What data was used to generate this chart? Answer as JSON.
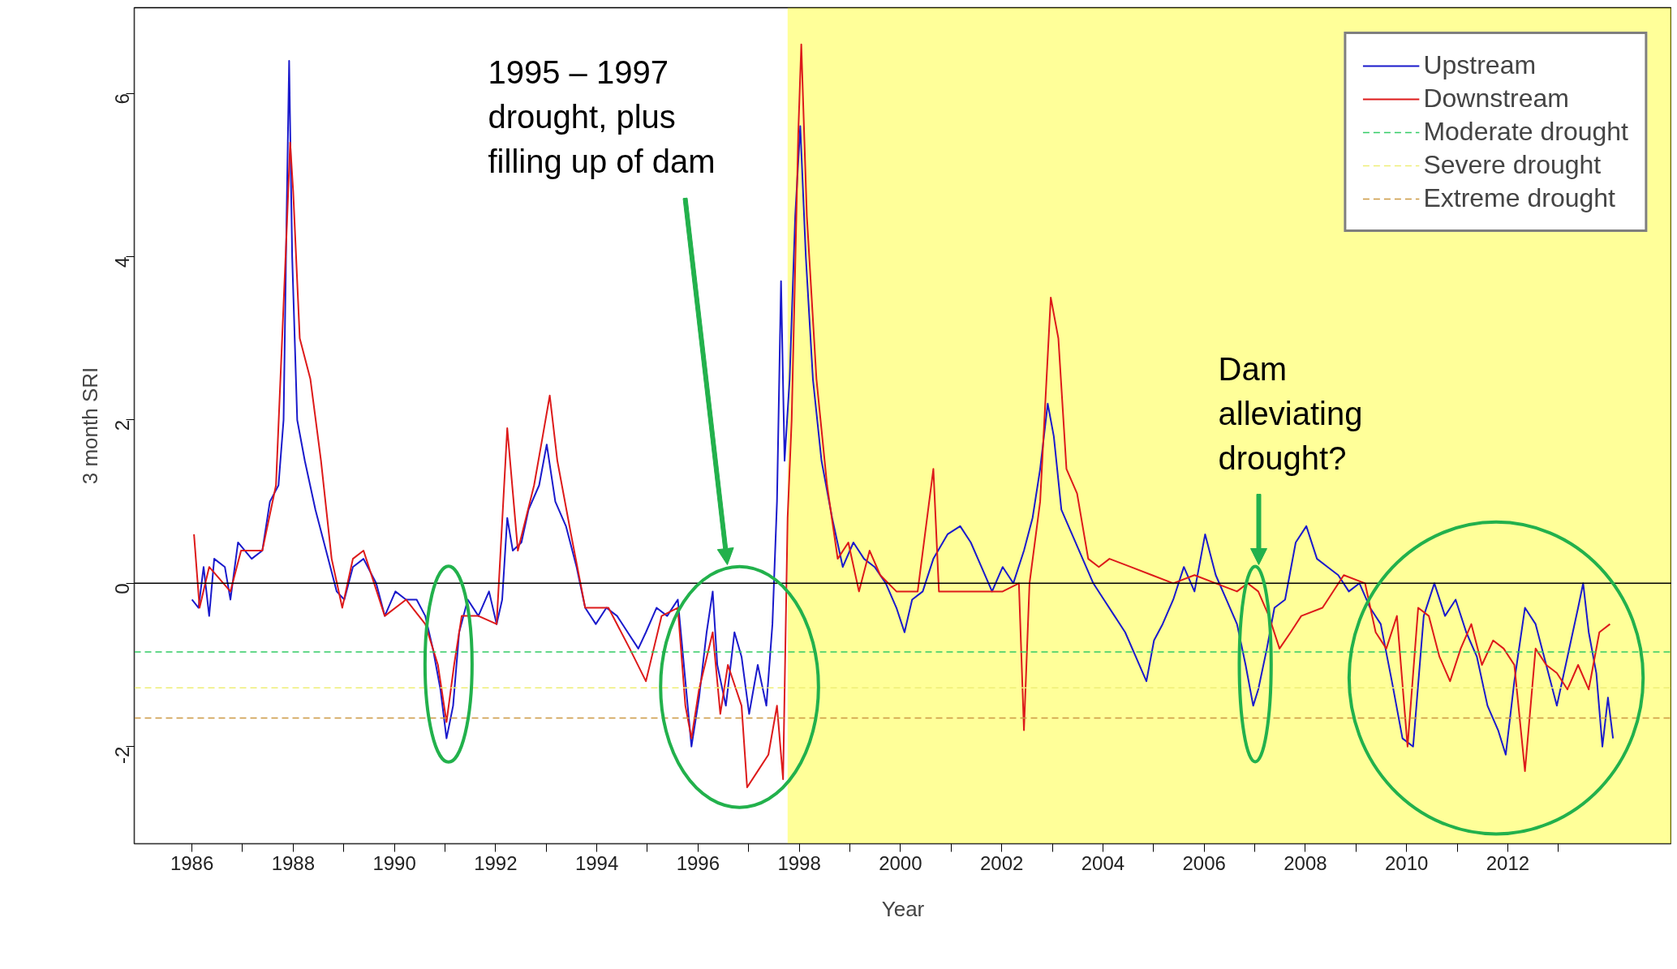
{
  "chart_data": {
    "type": "line",
    "xlabel": "Year",
    "ylabel": "3 month SRI",
    "xlim": [
      1984.86,
      2015.24
    ],
    "ylim": [
      -3.19,
      7.05
    ],
    "xticks": [
      1986,
      {
        "value": 1987,
        "label": null
      },
      1988,
      {
        "value": 1989,
        "label": null
      },
      1990,
      {
        "value": 1991,
        "label": null
      },
      1992,
      {
        "value": 1993,
        "label": null
      },
      1994,
      {
        "value": 1995,
        "label": null
      },
      1996,
      {
        "value": 1997,
        "label": null
      },
      1998,
      {
        "value": 1999,
        "label": null
      },
      2000,
      {
        "value": 2001,
        "label": null
      },
      2002,
      {
        "value": 2003,
        "label": null
      },
      2004,
      {
        "value": 2005,
        "label": null
      },
      2006,
      {
        "value": 2007,
        "label": null
      },
      2008,
      {
        "value": 2009,
        "label": null
      },
      2010,
      {
        "value": 2011,
        "label": null
      },
      2012,
      {
        "value": 2013,
        "label": null
      }
    ],
    "yticks": [
      -2,
      0,
      2,
      4,
      6
    ],
    "legend": "top right",
    "line_style": "solid",
    "series": [
      {
        "name": "Upstream",
        "color": "#1a1acc",
        "x": [
          1986.0,
          1986.13,
          1986.23,
          1986.34,
          1986.44,
          1986.65,
          1986.76,
          1986.91,
          1987.18,
          1987.39,
          1987.54,
          1987.71,
          1987.81,
          1987.87,
          1987.92,
          1987.98,
          1988.08,
          1988.23,
          1988.44,
          1988.65,
          1988.86,
          1989.01,
          1989.18,
          1989.39,
          1989.64,
          1989.81,
          1990.02,
          1990.23,
          1990.44,
          1990.61,
          1990.76,
          1990.91,
          1991.03,
          1991.16,
          1991.28,
          1991.45,
          1991.66,
          1991.87,
          1992.02,
          1992.13,
          1992.23,
          1992.34,
          1992.51,
          1992.65,
          1992.86,
          1993.01,
          1993.18,
          1993.39,
          1993.6,
          1993.77,
          1993.98,
          1994.19,
          1994.4,
          1994.61,
          1994.82,
          1994.97,
          1995.18,
          1995.39,
          1995.6,
          1995.75,
          1995.87,
          1996.02,
          1996.17,
          1996.29,
          1996.38,
          1996.55,
          1996.72,
          1996.86,
          1997.01,
          1997.18,
          1997.35,
          1997.47,
          1997.56,
          1997.64,
          1997.71,
          1997.81,
          1997.92,
          1998.02,
          1998.13,
          1998.27,
          1998.44,
          1998.65,
          1998.86,
          1999.07,
          1999.28,
          1999.49,
          1999.71,
          1999.92,
          2000.08,
          2000.23,
          2000.44,
          2000.65,
          2000.93,
          2001.18,
          2001.39,
          2001.6,
          2001.81,
          2002.02,
          2002.23,
          2002.44,
          2002.61,
          2002.76,
          2002.91,
          2003.03,
          2003.18,
          2003.39,
          2003.6,
          2003.81,
          2004.02,
          2004.23,
          2004.44,
          2004.65,
          2004.86,
          2005.01,
          2005.18,
          2005.39,
          2005.6,
          2005.81,
          2006.02,
          2006.23,
          2006.44,
          2006.65,
          2006.82,
          2006.97,
          2007.07,
          2007.24,
          2007.39,
          2007.6,
          2007.81,
          2008.02,
          2008.23,
          2008.44,
          2008.65,
          2008.86,
          2009.07,
          2009.28,
          2009.49,
          2009.71,
          2009.92,
          2010.13,
          2010.34,
          2010.55,
          2010.76,
          2010.97,
          2011.18,
          2011.39,
          2011.6,
          2011.81,
          2011.96,
          2012.13,
          2012.34,
          2012.55,
          2012.76,
          2012.97,
          2013.18,
          2013.39,
          2013.49,
          2013.6,
          2013.75,
          2013.87,
          2013.98,
          2014.08
        ],
        "values": [
          -0.2,
          -0.3,
          0.2,
          -0.4,
          0.3,
          0.2,
          -0.2,
          0.5,
          0.3,
          0.4,
          1.0,
          1.2,
          2.0,
          4.5,
          6.4,
          4.0,
          2.0,
          1.5,
          0.9,
          0.4,
          -0.1,
          -0.2,
          0.2,
          0.3,
          0.0,
          -0.4,
          -0.1,
          -0.2,
          -0.2,
          -0.4,
          -0.8,
          -1.3,
          -1.9,
          -1.5,
          -0.6,
          -0.2,
          -0.4,
          -0.1,
          -0.5,
          -0.2,
          0.8,
          0.4,
          0.5,
          0.9,
          1.2,
          1.7,
          1.0,
          0.7,
          0.2,
          -0.3,
          -0.5,
          -0.3,
          -0.4,
          -0.6,
          -0.8,
          -0.6,
          -0.3,
          -0.4,
          -0.2,
          -1.2,
          -2.0,
          -1.4,
          -0.6,
          -0.1,
          -1.0,
          -1.5,
          -0.6,
          -0.9,
          -1.6,
          -1.0,
          -1.5,
          -0.5,
          1.0,
          3.7,
          1.5,
          2.5,
          4.5,
          5.6,
          4.0,
          2.5,
          1.5,
          0.8,
          0.2,
          0.5,
          0.3,
          0.2,
          0.0,
          -0.3,
          -0.6,
          -0.2,
          -0.1,
          0.3,
          0.6,
          0.7,
          0.5,
          0.2,
          -0.1,
          0.2,
          0.0,
          0.4,
          0.8,
          1.4,
          2.2,
          1.8,
          0.9,
          0.6,
          0.3,
          0.0,
          -0.2,
          -0.4,
          -0.6,
          -0.9,
          -1.2,
          -0.7,
          -0.5,
          -0.2,
          0.2,
          -0.1,
          0.6,
          0.1,
          -0.2,
          -0.5,
          -1.0,
          -1.5,
          -1.3,
          -0.8,
          -0.3,
          -0.2,
          0.5,
          0.7,
          0.3,
          0.2,
          0.1,
          -0.1,
          0.0,
          -0.3,
          -0.5,
          -1.2,
          -1.9,
          -2.0,
          -0.4,
          0.0,
          -0.4,
          -0.2,
          -0.6,
          -0.9,
          -1.5,
          -1.8,
          -2.1,
          -1.2,
          -0.3,
          -0.5,
          -1.0,
          -1.5,
          -0.9,
          -0.3,
          0.0,
          -0.6,
          -1.1,
          -2.0,
          -1.4,
          -1.9
        ]
      },
      {
        "name": "Downstream",
        "color": "#dd1a1a",
        "x": [
          1986.04,
          1986.15,
          1986.34,
          1986.76,
          1986.97,
          1987.39,
          1987.66,
          1987.87,
          1987.94,
          1988.0,
          1988.13,
          1988.34,
          1988.55,
          1988.76,
          1988.97,
          1989.18,
          1989.39,
          1989.6,
          1989.81,
          1990.23,
          1990.61,
          1990.86,
          1991.03,
          1991.18,
          1991.33,
          1991.66,
          1992.02,
          1992.23,
          1992.44,
          1992.76,
          1992.93,
          1993.07,
          1993.22,
          1993.49,
          1993.77,
          1994.23,
          1994.65,
          1994.97,
          1995.28,
          1995.6,
          1995.75,
          1995.87,
          1996.02,
          1996.29,
          1996.44,
          1996.59,
          1996.86,
          1996.97,
          1997.18,
          1997.39,
          1997.56,
          1997.68,
          1997.77,
          1997.85,
          1997.98,
          1998.04,
          1998.15,
          1998.34,
          1998.55,
          1998.76,
          1998.97,
          1999.18,
          1999.39,
          1999.6,
          1999.92,
          2000.34,
          2000.65,
          2000.76,
          2001.18,
          2001.6,
          2002.02,
          2002.34,
          2002.44,
          2002.55,
          2002.76,
          2002.97,
          2003.12,
          2003.28,
          2003.49,
          2003.71,
          2003.92,
          2004.13,
          2004.55,
          2004.97,
          2005.39,
          2005.81,
          2006.23,
          2006.65,
          2006.86,
          2007.07,
          2007.28,
          2007.49,
          2007.71,
          2007.92,
          2008.34,
          2008.76,
          2009.18,
          2009.39,
          2009.6,
          2009.81,
          2010.02,
          2010.23,
          2010.44,
          2010.65,
          2010.86,
          2011.07,
          2011.28,
          2011.49,
          2011.71,
          2011.92,
          2012.13,
          2012.34,
          2012.55,
          2012.76,
          2012.97,
          2013.18,
          2013.39,
          2013.6,
          2013.81,
          2014.02
        ],
        "values": [
          0.6,
          -0.3,
          0.2,
          -0.1,
          0.4,
          0.4,
          1.2,
          4.3,
          5.4,
          4.8,
          3.0,
          2.5,
          1.5,
          0.3,
          -0.3,
          0.3,
          0.4,
          0.0,
          -0.4,
          -0.2,
          -0.5,
          -1.0,
          -1.7,
          -1.0,
          -0.4,
          -0.4,
          -0.5,
          1.9,
          0.4,
          1.2,
          1.8,
          2.3,
          1.5,
          0.6,
          -0.3,
          -0.3,
          -0.8,
          -1.2,
          -0.4,
          -0.3,
          -1.5,
          -1.9,
          -1.3,
          -0.6,
          -1.6,
          -1.0,
          -1.5,
          -2.5,
          -2.3,
          -2.1,
          -1.5,
          -2.4,
          0.8,
          2.0,
          5.5,
          6.6,
          4.5,
          2.5,
          1.2,
          0.3,
          0.5,
          -0.1,
          0.4,
          0.1,
          -0.1,
          -0.1,
          1.4,
          -0.1,
          -0.1,
          -0.1,
          -0.1,
          0.0,
          -1.8,
          0.0,
          1.0,
          3.5,
          3.0,
          1.4,
          1.1,
          0.3,
          0.2,
          0.3,
          0.2,
          0.1,
          0.0,
          0.1,
          0.0,
          -0.1,
          0.0,
          -0.1,
          -0.4,
          -0.8,
          -0.6,
          -0.4,
          -0.3,
          0.1,
          0.0,
          -0.6,
          -0.8,
          -0.4,
          -2.0,
          -0.3,
          -0.4,
          -0.9,
          -1.2,
          -0.8,
          -0.5,
          -1.0,
          -0.7,
          -0.8,
          -1.0,
          -2.3,
          -0.8,
          -1.0,
          -1.1,
          -1.3,
          -1.0,
          -1.3,
          -0.6,
          -0.5
        ]
      }
    ],
    "ref_lines": [
      {
        "axis": "y",
        "value": 0,
        "label": null,
        "color": "#000000",
        "line_style": "solid"
      },
      {
        "axis": "y",
        "value": -0.84,
        "label": "Moderate drought",
        "color": "#33cc66",
        "line_style": "dashed"
      },
      {
        "axis": "y",
        "value": -1.28,
        "label": "Severe drought",
        "color": "#eeee77",
        "line_style": "dashed"
      },
      {
        "axis": "y",
        "value": -1.65,
        "label": "Extreme drought",
        "color": "#cc9944",
        "line_style": "dashed"
      }
    ],
    "bands": [
      {
        "axis": "x",
        "from": 1997.77,
        "to": 2015.24,
        "label": null,
        "color": "#ffff00"
      }
    ],
    "annotations": [
      "1995 – 1997\ndrought, plus\nfilling up of dam",
      "Dam\nalleviating\ndrought?"
    ]
  }
}
